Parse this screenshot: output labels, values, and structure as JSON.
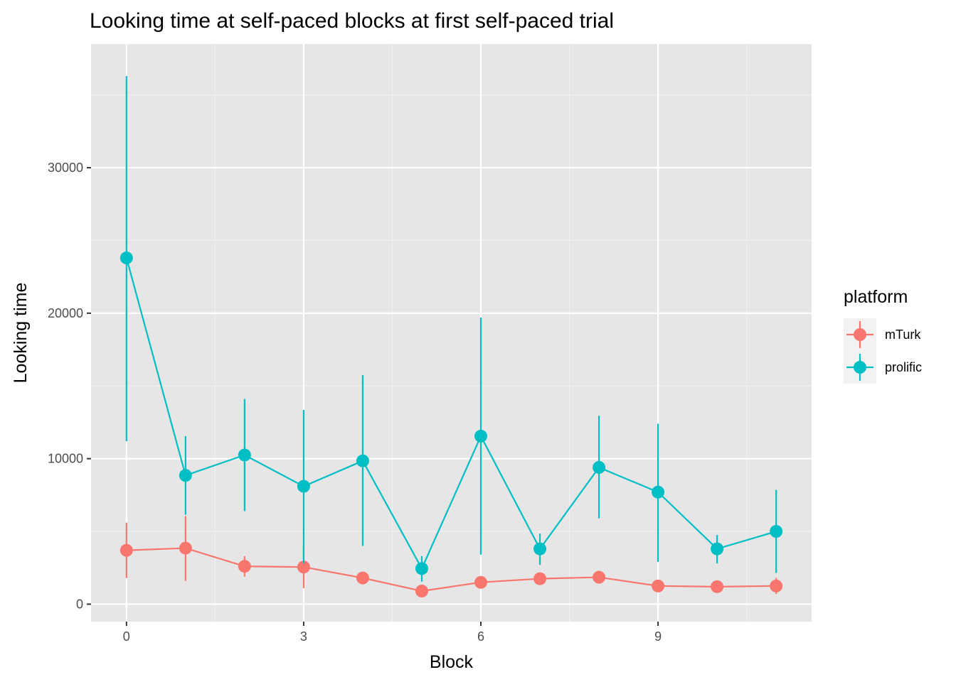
{
  "chart_data": {
    "type": "line",
    "title": "Looking time at self-paced blocks at first self-paced trial",
    "xlabel": "Block",
    "ylabel": "Looking time",
    "xlim": [
      -0.6,
      11.6
    ],
    "ylim": [
      -1200,
      38500
    ],
    "x_ticks": [
      0,
      3,
      6,
      9
    ],
    "x_minor": [
      1.5,
      4.5,
      7.5,
      10.5
    ],
    "y_ticks": [
      0,
      10000,
      20000,
      30000
    ],
    "y_minor": [
      5000,
      15000,
      25000,
      35000
    ],
    "grid": true,
    "legend": {
      "title": "platform",
      "position": "right"
    },
    "series": [
      {
        "name": "mTurk",
        "color": "#F8766D",
        "x": [
          0,
          1,
          2,
          3,
          4,
          5,
          6,
          7,
          8,
          9,
          10,
          11
        ],
        "y": [
          3700,
          3850,
          2600,
          2550,
          1800,
          900,
          1500,
          1750,
          1850,
          1250,
          1200,
          1250
        ],
        "ymin": [
          1800,
          1600,
          1900,
          1100,
          1650,
          750,
          1350,
          1600,
          1700,
          1100,
          1050,
          700
        ],
        "ymax": [
          5600,
          6050,
          3300,
          4050,
          1950,
          1050,
          1650,
          1900,
          2000,
          1400,
          1350,
          1800
        ]
      },
      {
        "name": "prolific",
        "color": "#00BFC4",
        "x": [
          0,
          1,
          2,
          3,
          4,
          5,
          6,
          7,
          8,
          9,
          10,
          11
        ],
        "y": [
          23800,
          8850,
          10250,
          8100,
          9850,
          2450,
          11550,
          3800,
          9400,
          7700,
          3800,
          5000
        ],
        "ymin": [
          11200,
          6150,
          6400,
          2800,
          4000,
          1550,
          3400,
          2700,
          5900,
          2900,
          2800,
          2150
        ],
        "ymax": [
          36300,
          11550,
          14100,
          13350,
          15750,
          3300,
          19700,
          4850,
          12950,
          12400,
          4750,
          7850
        ]
      }
    ]
  }
}
